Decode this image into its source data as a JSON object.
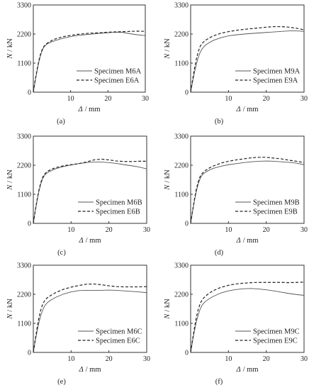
{
  "chart_data": [
    {
      "type": "line",
      "caption": "(a)",
      "xlabel_symbol": "Δ",
      "xlabel_unit": "/ mm",
      "ylabel_symbol": "N",
      "ylabel_unit": "/ kN",
      "xlim": [
        0,
        30
      ],
      "ylim": [
        0,
        3300
      ],
      "xticks": [
        "10",
        "20",
        "30"
      ],
      "yticks": [
        "0",
        "1100",
        "2200",
        "3300"
      ],
      "legend_position": "bottom-right",
      "series": [
        {
          "name": "Specimen M6A",
          "style": "solid",
          "x": [
            0,
            0.5,
            1,
            1.5,
            2,
            2.5,
            3,
            3.5,
            4,
            5,
            6,
            8,
            10,
            12,
            15,
            18,
            20,
            22,
            24,
            26,
            28,
            30
          ],
          "y": [
            0,
            420,
            800,
            1150,
            1420,
            1620,
            1740,
            1800,
            1850,
            1910,
            1960,
            2040,
            2100,
            2150,
            2190,
            2230,
            2250,
            2270,
            2260,
            2210,
            2170,
            2140
          ]
        },
        {
          "name": "Specimen E6A",
          "style": "dashed",
          "x": [
            0,
            0.5,
            1,
            1.5,
            2,
            2.5,
            3,
            3.5,
            4,
            5,
            6,
            8,
            10,
            12,
            15,
            18,
            20,
            22,
            24,
            26,
            28,
            30
          ],
          "y": [
            0,
            450,
            850,
            1200,
            1470,
            1660,
            1760,
            1830,
            1880,
            1960,
            2020,
            2100,
            2150,
            2190,
            2230,
            2250,
            2270,
            2280,
            2290,
            2300,
            2310,
            2300
          ]
        }
      ]
    },
    {
      "type": "line",
      "caption": "(b)",
      "xlabel_symbol": "Δ",
      "xlabel_unit": "/ mm",
      "ylabel_symbol": "N",
      "ylabel_unit": "/ kN",
      "xlim": [
        0,
        30
      ],
      "ylim": [
        0,
        3300
      ],
      "xticks": [
        "10",
        "20",
        "30"
      ],
      "yticks": [
        "0",
        "1100",
        "2200",
        "3300"
      ],
      "legend_position": "bottom-right",
      "series": [
        {
          "name": "Specimen M9A",
          "style": "solid",
          "x": [
            0,
            0.5,
            1,
            1.5,
            2,
            2.5,
            3,
            3.5,
            4,
            5,
            6,
            8,
            10,
            12,
            15,
            18,
            20,
            22,
            24,
            26,
            28,
            30
          ],
          "y": [
            0,
            380,
            740,
            1050,
            1310,
            1500,
            1630,
            1720,
            1790,
            1880,
            1960,
            2060,
            2130,
            2170,
            2210,
            2240,
            2260,
            2280,
            2300,
            2320,
            2320,
            2300
          ]
        },
        {
          "name": "Specimen E9A",
          "style": "dashed",
          "x": [
            0,
            0.5,
            1,
            1.5,
            2,
            2.5,
            3,
            3.5,
            4,
            5,
            6,
            8,
            10,
            12,
            15,
            18,
            20,
            22,
            24,
            26,
            28,
            30
          ],
          "y": [
            0,
            460,
            880,
            1240,
            1530,
            1730,
            1840,
            1910,
            1970,
            2060,
            2130,
            2230,
            2290,
            2340,
            2390,
            2430,
            2460,
            2480,
            2480,
            2460,
            2420,
            2360
          ]
        }
      ]
    },
    {
      "type": "line",
      "caption": "(c)",
      "xlabel_symbol": "Δ",
      "xlabel_unit": "/ mm",
      "ylabel_symbol": "N",
      "ylabel_unit": "/ kN",
      "xlim": [
        0,
        30
      ],
      "ylim": [
        0,
        3300
      ],
      "xticks": [
        "10",
        "20",
        "30"
      ],
      "yticks": [
        "0",
        "1100",
        "2200",
        "3300"
      ],
      "legend_position": "bottom-right",
      "series": [
        {
          "name": "Specimen M6B",
          "style": "solid",
          "x": [
            0,
            0.5,
            1,
            1.5,
            2,
            2.5,
            3,
            3.5,
            4,
            5,
            6,
            8,
            10,
            12,
            14,
            16,
            18,
            20,
            22,
            24,
            26,
            28,
            30
          ],
          "y": [
            0,
            450,
            860,
            1220,
            1500,
            1700,
            1820,
            1890,
            1940,
            2010,
            2070,
            2150,
            2210,
            2260,
            2300,
            2320,
            2320,
            2300,
            2270,
            2220,
            2180,
            2130,
            2060
          ]
        },
        {
          "name": "Specimen E6B",
          "style": "dashed",
          "x": [
            0,
            0.5,
            1,
            1.5,
            2,
            2.5,
            3,
            3.5,
            4,
            5,
            6,
            8,
            10,
            12,
            14,
            16,
            18,
            20,
            22,
            24,
            26,
            28,
            30
          ],
          "y": [
            0,
            470,
            900,
            1270,
            1550,
            1750,
            1870,
            1940,
            1990,
            2060,
            2110,
            2180,
            2220,
            2260,
            2320,
            2400,
            2430,
            2400,
            2360,
            2340,
            2340,
            2350,
            2350
          ]
        }
      ]
    },
    {
      "type": "line",
      "caption": "(d)",
      "xlabel_symbol": "Δ",
      "xlabel_unit": "/ mm",
      "ylabel_symbol": "N",
      "ylabel_unit": "/ kN",
      "xlim": [
        0,
        30
      ],
      "ylim": [
        0,
        3300
      ],
      "xticks": [
        "10",
        "20",
        "30"
      ],
      "yticks": [
        "0",
        "1100",
        "2200",
        "3300"
      ],
      "legend_position": "bottom-right",
      "series": [
        {
          "name": "Specimen M9B",
          "style": "solid",
          "x": [
            0,
            0.5,
            1,
            1.5,
            2,
            2.5,
            3,
            3.5,
            4,
            5,
            6,
            8,
            10,
            12,
            14,
            16,
            18,
            20,
            22,
            24,
            26,
            28,
            30
          ],
          "y": [
            0,
            440,
            850,
            1210,
            1490,
            1690,
            1820,
            1890,
            1940,
            2020,
            2080,
            2160,
            2220,
            2260,
            2300,
            2330,
            2350,
            2360,
            2350,
            2330,
            2310,
            2280,
            2220
          ]
        },
        {
          "name": "Specimen E9B",
          "style": "dashed",
          "x": [
            0,
            0.5,
            1,
            1.5,
            2,
            2.5,
            3,
            3.5,
            4,
            5,
            6,
            8,
            10,
            12,
            14,
            16,
            18,
            20,
            22,
            24,
            26,
            28,
            30
          ],
          "y": [
            0,
            470,
            910,
            1290,
            1570,
            1770,
            1880,
            1950,
            2010,
            2100,
            2170,
            2280,
            2350,
            2400,
            2440,
            2480,
            2500,
            2500,
            2470,
            2440,
            2390,
            2350,
            2300
          ]
        }
      ]
    },
    {
      "type": "line",
      "caption": "(e)",
      "xlabel_symbol": "Δ",
      "xlabel_unit": "/ mm",
      "ylabel_symbol": "N",
      "ylabel_unit": "/ kN",
      "xlim": [
        0,
        30
      ],
      "ylim": [
        0,
        3300
      ],
      "xticks": [
        "10",
        "20",
        "30"
      ],
      "yticks": [
        "0",
        "1100",
        "2200",
        "3300"
      ],
      "legend_position": "bottom-right",
      "series": [
        {
          "name": "Specimen M6C",
          "style": "solid",
          "x": [
            0,
            0.5,
            1,
            1.5,
            2,
            2.5,
            3,
            3.5,
            4,
            5,
            6,
            8,
            10,
            12,
            14,
            16,
            18,
            20,
            22,
            24,
            26,
            28,
            30
          ],
          "y": [
            0,
            420,
            800,
            1140,
            1410,
            1610,
            1760,
            1850,
            1920,
            2010,
            2090,
            2210,
            2290,
            2340,
            2350,
            2350,
            2350,
            2360,
            2350,
            2330,
            2310,
            2290,
            2260
          ]
        },
        {
          "name": "Specimen E6C",
          "style": "dashed",
          "x": [
            0,
            0.5,
            1,
            1.5,
            2,
            2.5,
            3,
            3.5,
            4,
            5,
            6,
            8,
            10,
            12,
            14,
            16,
            18,
            20,
            22,
            24,
            26,
            28,
            30
          ],
          "y": [
            0,
            480,
            930,
            1320,
            1620,
            1830,
            1960,
            2040,
            2100,
            2190,
            2270,
            2390,
            2470,
            2530,
            2580,
            2590,
            2560,
            2520,
            2490,
            2480,
            2480,
            2480,
            2490
          ]
        }
      ]
    },
    {
      "type": "line",
      "caption": "(f)",
      "xlabel_symbol": "Δ",
      "xlabel_unit": "/ mm",
      "ylabel_symbol": "N",
      "ylabel_unit": "/ kN",
      "xlim": [
        0,
        30
      ],
      "ylim": [
        0,
        3300
      ],
      "xticks": [
        "10",
        "20",
        "30"
      ],
      "yticks": [
        "0",
        "1100",
        "2200",
        "3300"
      ],
      "legend_position": "bottom-right",
      "series": [
        {
          "name": "Specimen M9C",
          "style": "solid",
          "x": [
            0,
            0.5,
            1,
            1.5,
            2,
            2.5,
            3,
            3.5,
            4,
            5,
            6,
            8,
            10,
            12,
            14,
            16,
            18,
            20,
            22,
            24,
            26,
            28,
            30
          ],
          "y": [
            0,
            420,
            810,
            1150,
            1420,
            1630,
            1780,
            1870,
            1940,
            2040,
            2120,
            2250,
            2330,
            2380,
            2410,
            2420,
            2400,
            2370,
            2330,
            2280,
            2230,
            2190,
            2160
          ]
        },
        {
          "name": "Specimen E9C",
          "style": "dashed",
          "x": [
            0,
            0.5,
            1,
            1.5,
            2,
            2.5,
            3,
            3.5,
            4,
            5,
            6,
            8,
            10,
            12,
            14,
            16,
            18,
            20,
            22,
            24,
            26,
            28,
            30
          ],
          "y": [
            0,
            480,
            930,
            1320,
            1620,
            1840,
            1980,
            2070,
            2140,
            2250,
            2340,
            2460,
            2540,
            2590,
            2620,
            2640,
            2650,
            2650,
            2650,
            2650,
            2640,
            2650,
            2660
          ]
        }
      ]
    }
  ]
}
